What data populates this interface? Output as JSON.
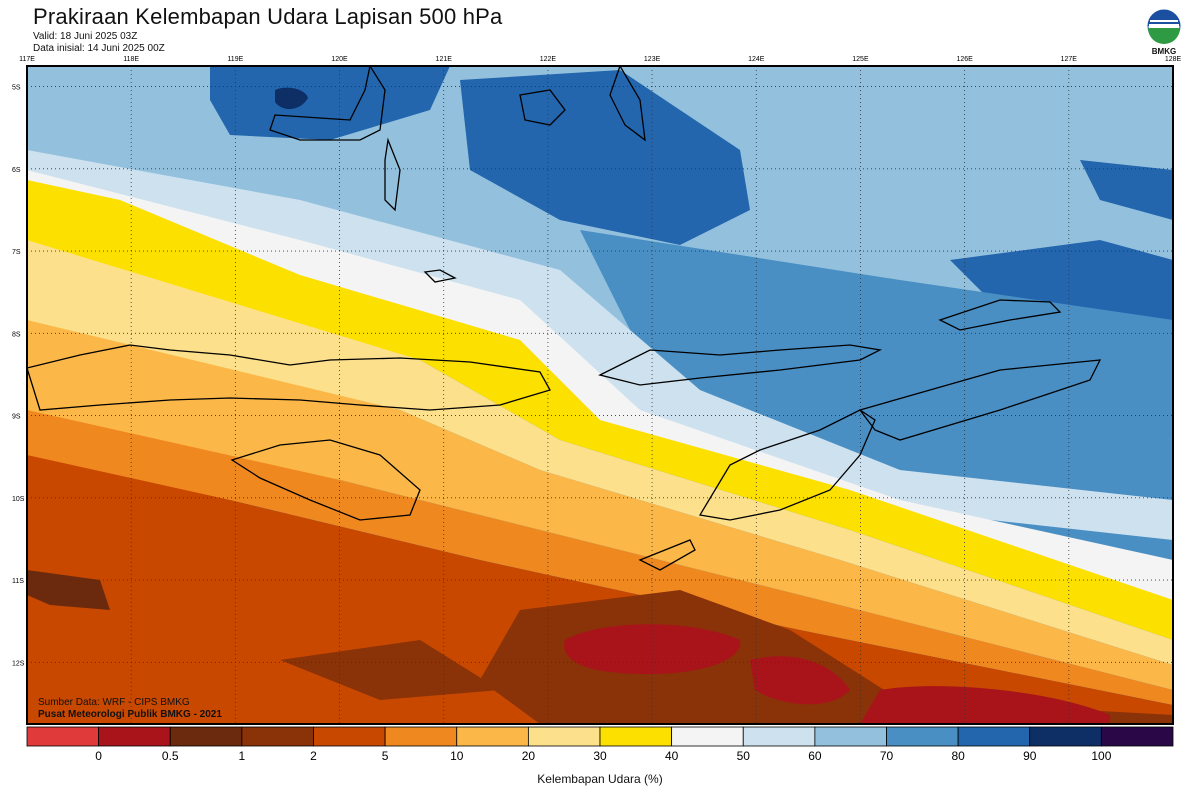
{
  "header": {
    "title": "Prakiraan Kelembapan Udara Lapisan 500 hPa",
    "valid": "Valid: 18 Juni 2025 03Z",
    "initial": "Data inisial: 14 Juni 2025 00Z"
  },
  "logo": {
    "text": "BMKG",
    "icon": "bmkg-logo"
  },
  "credits": {
    "source": "Sumber Data: WRF - CIPS BMKG",
    "producer": "Pusat Meteorologi Publik BMKG - 2021"
  },
  "map": {
    "lon_labels": [
      "117E",
      "118E",
      "119E",
      "120E",
      "121E",
      "122E",
      "123E",
      "124E",
      "125E",
      "126E",
      "127E",
      "128E"
    ],
    "lat_labels": [
      "5S",
      "6S",
      "7S",
      "8S",
      "9S",
      "10S",
      "11S",
      "12S"
    ],
    "lon_range": [
      117,
      128
    ],
    "lat_range": [
      -4.75,
      -12.75
    ],
    "grid": true
  },
  "colorbar": {
    "label": "Kelembapan Udara (%)",
    "ticks": [
      "0",
      "0.5",
      "1",
      "2",
      "5",
      "10",
      "20",
      "30",
      "40",
      "50",
      "60",
      "70",
      "80",
      "90",
      "100"
    ],
    "colors": [
      "#e03a3a",
      "#a8141a",
      "#6b2a0e",
      "#8a3208",
      "#c84800",
      "#f08820",
      "#fbb848",
      "#fde08c",
      "#fbe000",
      "#f4f4f4",
      "#cde1ee",
      "#93c1dd",
      "#4a8fc4",
      "#2366ae",
      "#0d2f66",
      "#2a0848"
    ]
  }
}
